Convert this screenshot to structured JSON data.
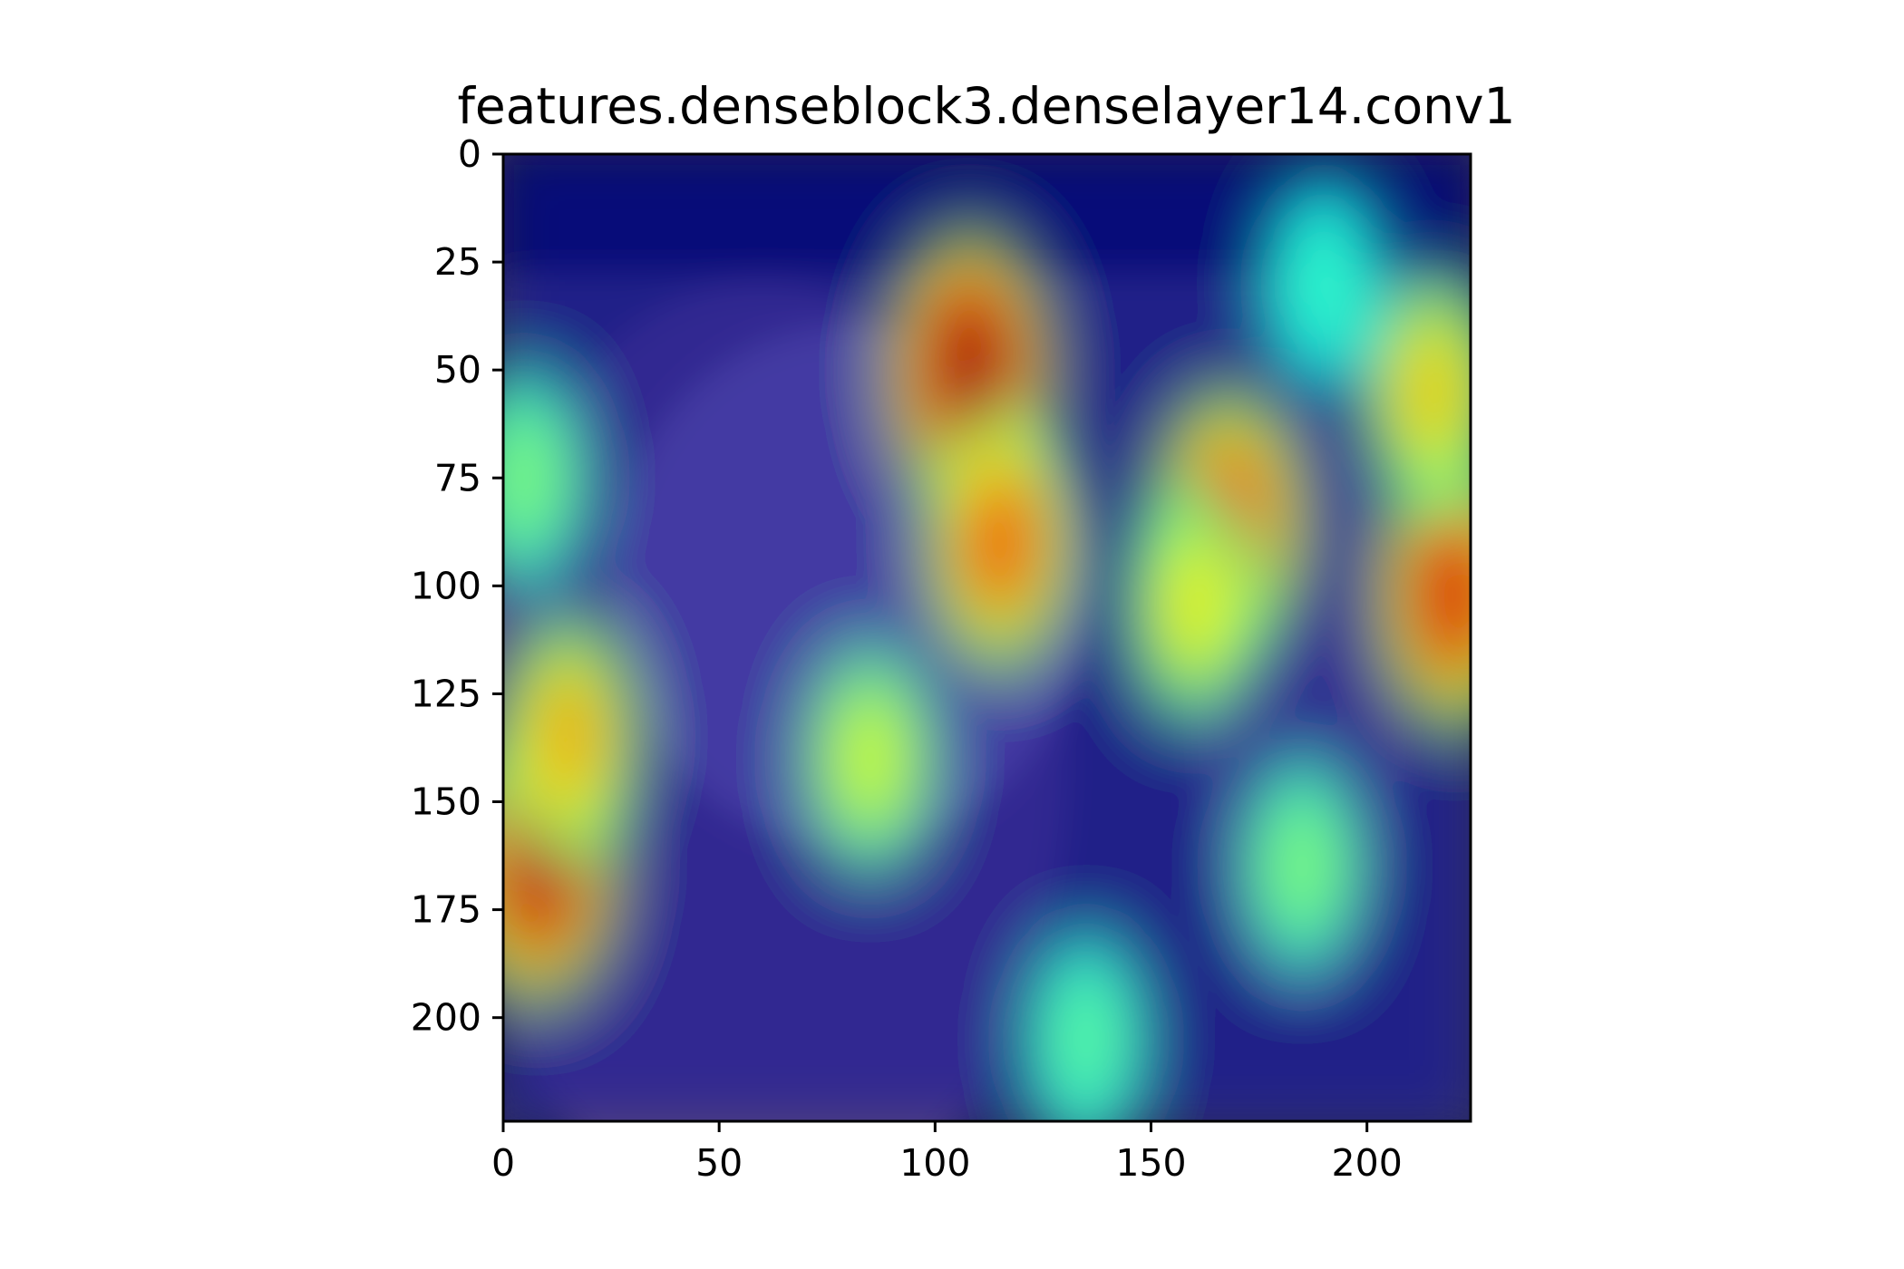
{
  "chart_data": {
    "type": "heatmap",
    "title": "features.denseblock3.denselayer14.conv1",
    "subtitle": "",
    "xlabel": "",
    "ylabel": "",
    "image_description_overlay": "jet",
    "xlim": [
      0,
      224
    ],
    "ylim": [
      224,
      0
    ],
    "x_ticks": [
      0,
      50,
      100,
      150,
      200
    ],
    "y_ticks": [
      0,
      25,
      50,
      75,
      100,
      125,
      150,
      175,
      200
    ],
    "grid": false,
    "legend": "none",
    "colormap_colors": [
      "#00007f",
      "#0000ff",
      "#00ffff",
      "#7fff7f",
      "#ffff00",
      "#ff7f00",
      "#ff0000",
      "#7f0000"
    ],
    "background_colors": {
      "sky_top": "#0a1850",
      "field": "#3a3a6a",
      "bear_body": "#5a4a7a",
      "bear_face": "#7a6a9a"
    },
    "hotspots": [
      {
        "x": 108,
        "y": 50,
        "intensity": 1.0
      },
      {
        "x": 115,
        "y": 90,
        "intensity": 0.8
      },
      {
        "x": 8,
        "y": 165,
        "intensity": 0.95
      },
      {
        "x": 15,
        "y": 135,
        "intensity": 0.7
      },
      {
        "x": 168,
        "y": 85,
        "intensity": 0.85
      },
      {
        "x": 160,
        "y": 105,
        "intensity": 0.6
      },
      {
        "x": 220,
        "y": 102,
        "intensity": 0.9
      },
      {
        "x": 215,
        "y": 55,
        "intensity": 0.65
      },
      {
        "x": 85,
        "y": 140,
        "intensity": 0.55
      },
      {
        "x": 185,
        "y": 165,
        "intensity": 0.45
      },
      {
        "x": 135,
        "y": 205,
        "intensity": 0.4
      },
      {
        "x": 5,
        "y": 75,
        "intensity": 0.45
      },
      {
        "x": 190,
        "y": 30,
        "intensity": 0.35
      }
    ]
  }
}
